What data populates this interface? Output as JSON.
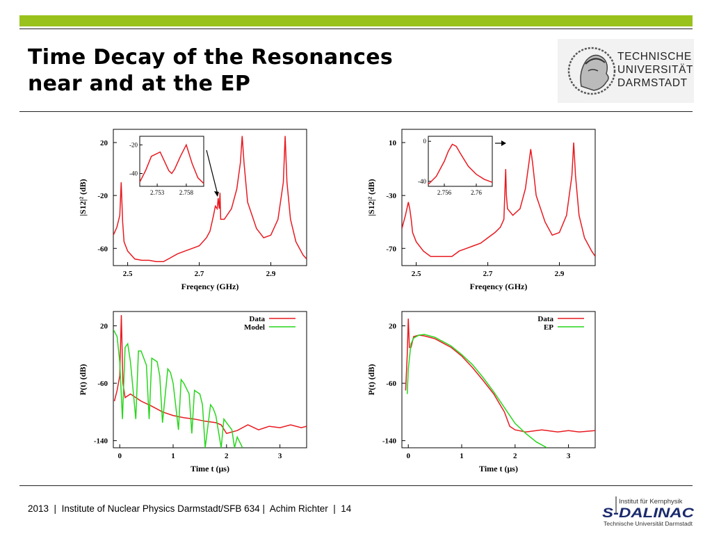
{
  "title_line1": "Time Decay of the Resonances",
  "title_line2": "near and at the EP",
  "logo": {
    "line1": "TECHNISCHE",
    "line2": "UNIVERSITÄT",
    "line3": "DARMSTADT",
    "icon": "athena-head-seal"
  },
  "footer": {
    "year": "2013",
    "sep": "  |  ",
    "institute": "Institute of Nuclear Physics Darmstadt/SFB 634",
    "sep2": " |  ",
    "author": "Achim Richter",
    "sep3": "  |  ",
    "page": "14"
  },
  "sdalinac_logo": {
    "top": "Institut für Kernphysik",
    "main": "S-DALINAC",
    "bottom": "Technische Universität Darmstadt"
  },
  "colors": {
    "accent_bar": "#99c21c",
    "data": "#e8191f",
    "model": "#27d61b"
  },
  "chart_data": [
    {
      "type": "line",
      "id": "spectrum-left",
      "xlabel": "Freqency (GHz)",
      "ylabel": "|S12|² (dB)",
      "xlim": [
        2.46,
        3.0
      ],
      "ylim": [
        -73,
        30
      ],
      "xticks": [
        "2.5",
        "2.7",
        "2.9"
      ],
      "yticks": [
        "20",
        "-20",
        "-60"
      ],
      "series": [
        {
          "x": [
            2.46,
            2.47,
            2.478,
            2.482,
            2.486,
            2.49,
            2.5,
            2.52,
            2.54,
            2.56,
            2.58,
            2.6,
            2.62,
            2.64,
            2.66,
            2.68,
            2.7,
            2.72,
            2.73,
            2.74,
            2.745,
            2.75,
            2.753,
            2.756,
            2.758,
            2.76,
            2.77,
            2.79,
            2.805,
            2.815,
            2.82,
            2.825,
            2.835,
            2.86,
            2.88,
            2.9,
            2.92,
            2.935,
            2.94,
            2.945,
            2.955,
            2.97,
            2.99,
            3.0
          ],
          "y": [
            -50,
            -44,
            -35,
            -10,
            -40,
            -55,
            -62,
            -68,
            -69,
            -69,
            -70,
            -70,
            -67,
            -64,
            -62,
            -60,
            -58,
            -52,
            -47,
            -35,
            -28,
            -30,
            -22,
            -30,
            -18,
            -38,
            -38,
            -30,
            -15,
            5,
            25,
            5,
            -25,
            -45,
            -52,
            -50,
            -38,
            -10,
            25,
            -10,
            -38,
            -55,
            -65,
            -68
          ]
        }
      ],
      "inset": {
        "xticks": [
          "2.753",
          "2.758"
        ],
        "yticks": [
          "-20",
          "-40"
        ],
        "xlim": [
          2.75,
          2.761
        ],
        "ylim": [
          -49,
          -14
        ],
        "x": [
          2.75,
          2.751,
          2.752,
          2.7535,
          2.755,
          2.7555,
          2.756,
          2.757,
          2.758,
          2.759,
          2.76,
          2.761
        ],
        "y": [
          -46,
          -38,
          -28,
          -25,
          -38,
          -40,
          -37,
          -28,
          -20,
          -33,
          -43,
          -47
        ]
      },
      "arrow": "points to resonance doublet near 2.75 GHz"
    },
    {
      "type": "line",
      "id": "spectrum-right",
      "xlabel": "Freqency (GHz)",
      "ylabel": "|S12|² (dB)",
      "xlim": [
        2.46,
        3.0
      ],
      "ylim": [
        -83,
        20
      ],
      "xticks": [
        "2.5",
        "2.7",
        "2.9"
      ],
      "yticks": [
        "10",
        "-30",
        "-70"
      ],
      "series": [
        {
          "x": [
            2.46,
            2.47,
            2.478,
            2.482,
            2.486,
            2.49,
            2.5,
            2.52,
            2.54,
            2.56,
            2.58,
            2.6,
            2.62,
            2.64,
            2.66,
            2.68,
            2.7,
            2.72,
            2.735,
            2.745,
            2.75,
            2.752,
            2.755,
            2.77,
            2.79,
            2.805,
            2.815,
            2.82,
            2.825,
            2.835,
            2.86,
            2.88,
            2.9,
            2.92,
            2.935,
            2.94,
            2.945,
            2.955,
            2.97,
            2.99,
            3.0
          ],
          "y": [
            -55,
            -45,
            -35,
            -40,
            -48,
            -58,
            -65,
            -72,
            -76,
            -76,
            -76,
            -76,
            -72,
            -70,
            -68,
            -66,
            -62,
            -58,
            -54,
            -48,
            -10,
            -30,
            -40,
            -45,
            -40,
            -25,
            -5,
            5,
            -5,
            -30,
            -50,
            -60,
            -58,
            -45,
            -15,
            10,
            -15,
            -45,
            -62,
            -72,
            -76
          ]
        }
      ],
      "inset": {
        "xticks": [
          "2.756",
          "2.76"
        ],
        "yticks": [
          "0",
          "-40"
        ],
        "xlim": [
          2.754,
          2.762
        ],
        "ylim": [
          -45,
          5
        ],
        "x": [
          2.754,
          2.755,
          2.756,
          2.7565,
          2.757,
          2.7575,
          2.758,
          2.759,
          2.76,
          2.761,
          2.762
        ],
        "y": [
          -43,
          -35,
          -20,
          -10,
          -3,
          -5,
          -12,
          -25,
          -33,
          -38,
          -41
        ]
      },
      "arrow": "points to single peak near 2.75 GHz"
    },
    {
      "type": "line",
      "id": "decay-left",
      "xlabel": "Time t (μs)",
      "ylabel": "P(t) (dB)",
      "xlim": [
        -0.12,
        3.5
      ],
      "ylim": [
        -150,
        40
      ],
      "xticks": [
        "0",
        "1",
        "2",
        "3"
      ],
      "yticks": [
        "20",
        "-60",
        "-140"
      ],
      "legend": "top-right",
      "series": [
        {
          "name": "Data",
          "color": "#e8191f",
          "x": [
            -0.1,
            -0.05,
            0,
            0.03,
            0.06,
            0.1,
            0.2,
            0.4,
            0.6,
            0.8,
            1.0,
            1.2,
            1.4,
            1.6,
            1.8,
            1.9,
            2.0,
            2.2,
            2.4,
            2.6,
            2.8,
            3.0,
            3.2,
            3.4,
            3.5
          ],
          "y": [
            -85,
            -70,
            -50,
            35,
            -60,
            -80,
            -75,
            -85,
            -92,
            -100,
            -105,
            -108,
            -110,
            -113,
            -115,
            -118,
            -130,
            -126,
            -118,
            -125,
            -120,
            -122,
            -118,
            -122,
            -120
          ]
        },
        {
          "name": "Model",
          "color": "#27d61b",
          "x": [
            -0.12,
            -0.05,
            0,
            0.05,
            0.1,
            0.15,
            0.2,
            0.3,
            0.35,
            0.4,
            0.5,
            0.55,
            0.6,
            0.7,
            0.75,
            0.8,
            0.9,
            0.95,
            1.0,
            1.1,
            1.15,
            1.2,
            1.3,
            1.35,
            1.4,
            1.5,
            1.55,
            1.6,
            1.7,
            1.75,
            1.8,
            1.9,
            1.95,
            2.0,
            2.1,
            2.15,
            2.2,
            2.3
          ],
          "y": [
            15,
            5,
            -30,
            -110,
            -10,
            -5,
            -30,
            -110,
            -15,
            -15,
            -35,
            -110,
            -25,
            -30,
            -50,
            -115,
            -40,
            -45,
            -60,
            -125,
            -55,
            -60,
            -75,
            -130,
            -70,
            -75,
            -90,
            -150,
            -90,
            -95,
            -105,
            -150,
            -110,
            -115,
            -125,
            -150,
            -135,
            -150
          ]
        }
      ]
    },
    {
      "type": "line",
      "id": "decay-right",
      "xlabel": "Time t (μs)",
      "ylabel": "P(t) (dB)",
      "xlim": [
        -0.12,
        3.5
      ],
      "ylim": [
        -150,
        40
      ],
      "xticks": [
        "0",
        "1",
        "2",
        "3"
      ],
      "yticks": [
        "20",
        "-60",
        "-140"
      ],
      "legend": "top-right",
      "series": [
        {
          "name": "Data",
          "color": "#e8191f",
          "x": [
            -0.05,
            -0.02,
            0,
            0.02,
            0.05,
            0.1,
            0.2,
            0.3,
            0.5,
            0.8,
            1.0,
            1.2,
            1.4,
            1.6,
            1.8,
            1.9,
            2.0,
            2.2,
            2.5,
            2.8,
            3.0,
            3.2,
            3.5
          ],
          "y": [
            -70,
            -20,
            30,
            -10,
            -10,
            5,
            7,
            6,
            2,
            -10,
            -22,
            -38,
            -56,
            -75,
            -100,
            -120,
            -125,
            -128,
            -125,
            -128,
            -126,
            -128,
            -126
          ]
        },
        {
          "name": "EP",
          "color": "#27d61b",
          "x": [
            -0.02,
            0,
            0.05,
            0.1,
            0.2,
            0.3,
            0.5,
            0.8,
            1.0,
            1.2,
            1.4,
            1.6,
            1.8,
            2.0,
            2.2,
            2.4,
            2.6
          ],
          "y": [
            -75,
            -40,
            -5,
            3,
            7,
            8,
            4,
            -8,
            -20,
            -34,
            -52,
            -72,
            -94,
            -116,
            -130,
            -142,
            -150
          ]
        }
      ]
    }
  ]
}
